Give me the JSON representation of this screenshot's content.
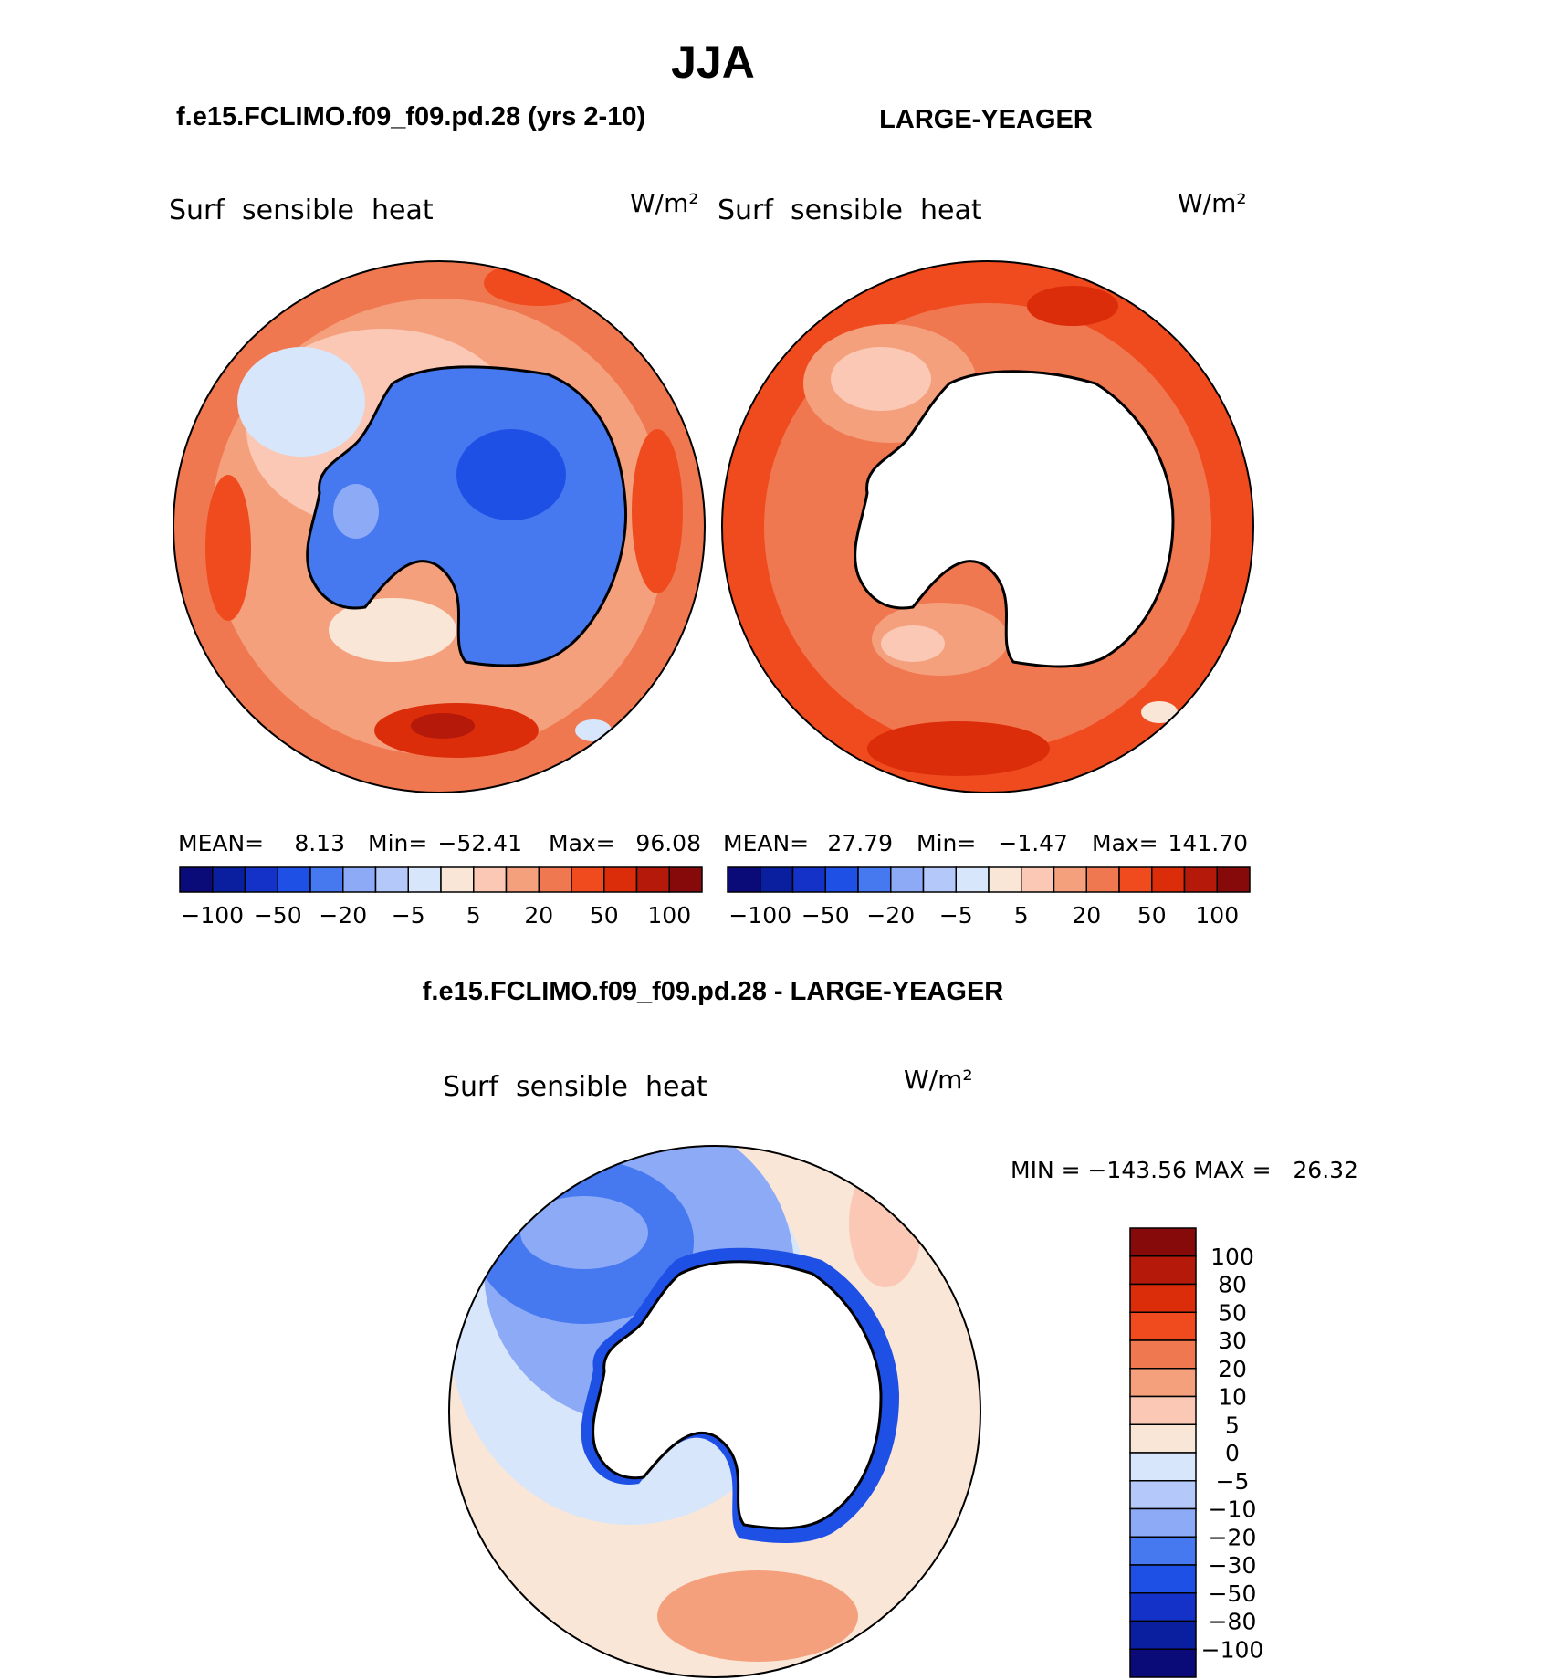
{
  "title": "JJA",
  "panels": {
    "left": {
      "case_title": "f.e15.FCLIMO.f09_f09.pd.28 (yrs 2-10)",
      "variable": "Surf  sensible  heat",
      "units": "W/m²",
      "stats": {
        "mean_label": "MEAN=",
        "mean": "8.13",
        "min_label": "Min=",
        "min": "−52.41",
        "max_label": "Max=",
        "max": "96.08"
      }
    },
    "right": {
      "case_title": "LARGE-YEAGER",
      "variable": "Surf  sensible  heat",
      "units": "W/m²",
      "stats": {
        "mean_label": "MEAN=",
        "mean": "27.79",
        "min_label": "Min=",
        "min": "−1.47",
        "max_label": "Max=",
        "max": "141.70"
      }
    },
    "diff": {
      "case_title": "f.e15.FCLIMO.f09_f09.pd.28 - LARGE-YEAGER",
      "variable": "Surf  sensible  heat",
      "units": "W/m²",
      "minmax": "MIN = −143.56 MAX =   26.32"
    }
  },
  "colorbar_h": {
    "colors": [
      "#0a0a78",
      "#0a1ea0",
      "#1432c8",
      "#1e50e6",
      "#4678f0",
      "#8caaf5",
      "#b4c8fa",
      "#d7e6fa",
      "#fae6d7",
      "#fac8b4",
      "#f5a07d",
      "#f07850",
      "#f04b1e",
      "#dc2d0a",
      "#b4190a",
      "#870a0a"
    ],
    "tick_labels": [
      "−100",
      "−50",
      "−20",
      "−5",
      "5",
      "20",
      "50",
      "100"
    ]
  },
  "colorbar_v": {
    "colors": [
      "#0a0a78",
      "#0a1ea0",
      "#1432c8",
      "#1e50e6",
      "#4678f0",
      "#8caaf5",
      "#b4c8fa",
      "#d7e6fa",
      "#fae6d7",
      "#fac8b4",
      "#f5a07d",
      "#f07850",
      "#f04b1e",
      "#dc2d0a",
      "#b4190a",
      "#870a0a"
    ],
    "tick_labels": [
      "100",
      "80",
      "50",
      "30",
      "20",
      "10",
      "5",
      "0",
      "−5",
      "−10",
      "−20",
      "−30",
      "−50",
      "−80",
      "−100"
    ]
  }
}
